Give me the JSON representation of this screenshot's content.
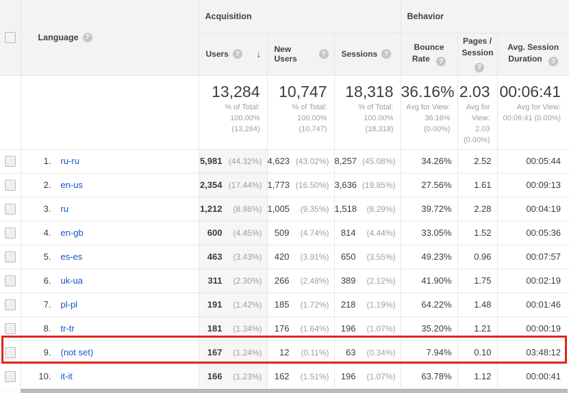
{
  "table": {
    "groups": {
      "acquisition": "Acquisition",
      "behavior": "Behavior"
    },
    "columns": {
      "language": "Language",
      "users": "Users",
      "new_users": "New Users",
      "sessions": "Sessions",
      "bounce_rate": "Bounce Rate",
      "pages_session": "Pages / Session",
      "avg_duration": "Avg. Session Duration"
    },
    "icons": {
      "help": "?",
      "sort_desc": "↓"
    },
    "totals": {
      "users": "13,284",
      "users_sub": "% of Total: 100.00% (13,284)",
      "new_users": "10,747",
      "new_users_sub": "% of Total: 100.00% (10,747)",
      "sessions": "18,318",
      "sessions_sub": "% of Total: 100.00% (18,318)",
      "bounce_rate": "36.16%",
      "bounce_rate_sub": "Avg for View: 36.16% (0.00%)",
      "pages_session": "2.03",
      "pages_session_sub": "Avg for View: 2.03 (0.00%)",
      "avg_duration": "00:06:41",
      "avg_duration_sub": "Avg for View: 00:06:41 (0.00%)"
    },
    "rows": [
      {
        "rank": "1.",
        "language": "ru-ru",
        "users": "5,981",
        "users_pct": "(44.32%)",
        "new_users": "4,623",
        "new_users_pct": "(43.02%)",
        "sessions": "8,257",
        "sessions_pct": "(45.08%)",
        "bounce_rate": "34.26%",
        "pages_session": "2.52",
        "avg_duration": "00:05:44"
      },
      {
        "rank": "2.",
        "language": "en-us",
        "users": "2,354",
        "users_pct": "(17.44%)",
        "new_users": "1,773",
        "new_users_pct": "(16.50%)",
        "sessions": "3,636",
        "sessions_pct": "(19.85%)",
        "bounce_rate": "27.56%",
        "pages_session": "1.61",
        "avg_duration": "00:09:13"
      },
      {
        "rank": "3.",
        "language": "ru",
        "users": "1,212",
        "users_pct": "(8.98%)",
        "new_users": "1,005",
        "new_users_pct": "(9.35%)",
        "sessions": "1,518",
        "sessions_pct": "(8.29%)",
        "bounce_rate": "39.72%",
        "pages_session": "2.28",
        "avg_duration": "00:04:19"
      },
      {
        "rank": "4.",
        "language": "en-gb",
        "users": "600",
        "users_pct": "(4.45%)",
        "new_users": "509",
        "new_users_pct": "(4.74%)",
        "sessions": "814",
        "sessions_pct": "(4.44%)",
        "bounce_rate": "33.05%",
        "pages_session": "1.52",
        "avg_duration": "00:05:36"
      },
      {
        "rank": "5.",
        "language": "es-es",
        "users": "463",
        "users_pct": "(3.43%)",
        "new_users": "420",
        "new_users_pct": "(3.91%)",
        "sessions": "650",
        "sessions_pct": "(3.55%)",
        "bounce_rate": "49.23%",
        "pages_session": "0.96",
        "avg_duration": "00:07:57"
      },
      {
        "rank": "6.",
        "language": "uk-ua",
        "users": "311",
        "users_pct": "(2.30%)",
        "new_users": "266",
        "new_users_pct": "(2.48%)",
        "sessions": "389",
        "sessions_pct": "(2.12%)",
        "bounce_rate": "41.90%",
        "pages_session": "1.75",
        "avg_duration": "00:02:19"
      },
      {
        "rank": "7.",
        "language": "pl-pl",
        "users": "191",
        "users_pct": "(1.42%)",
        "new_users": "185",
        "new_users_pct": "(1.72%)",
        "sessions": "218",
        "sessions_pct": "(1.19%)",
        "bounce_rate": "64.22%",
        "pages_session": "1.48",
        "avg_duration": "00:01:46"
      },
      {
        "rank": "8.",
        "language": "tr-tr",
        "users": "181",
        "users_pct": "(1.34%)",
        "new_users": "176",
        "new_users_pct": "(1.64%)",
        "sessions": "196",
        "sessions_pct": "(1.07%)",
        "bounce_rate": "35.20%",
        "pages_session": "1.21",
        "avg_duration": "00:00:19"
      },
      {
        "rank": "9.",
        "language": "(not set)",
        "users": "167",
        "users_pct": "(1.24%)",
        "new_users": "12",
        "new_users_pct": "(0.11%)",
        "sessions": "63",
        "sessions_pct": "(0.34%)",
        "bounce_rate": "7.94%",
        "pages_session": "0.10",
        "avg_duration": "03:48:12"
      },
      {
        "rank": "10.",
        "language": "it-it",
        "users": "166",
        "users_pct": "(1.23%)",
        "new_users": "162",
        "new_users_pct": "(1.51%)",
        "sessions": "196",
        "sessions_pct": "(1.07%)",
        "bounce_rate": "63.78%",
        "pages_session": "1.12",
        "avg_duration": "00:00:41"
      }
    ],
    "annotation": {
      "highlighted_row": "9. (not set)",
      "color": "#e2231a"
    }
  }
}
